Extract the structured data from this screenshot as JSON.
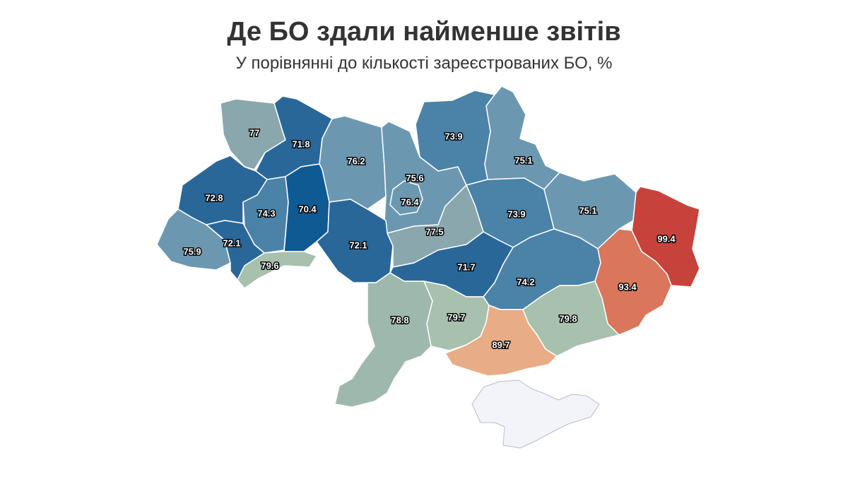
{
  "title": "Де БО здали найменше звітів",
  "subtitle": "У порівнянні до кількості зареєстрованих БО, %",
  "colors": {
    "dark_blue": "#0f5a93",
    "blue": "#2a6799",
    "mid_blue": "#4a82a8",
    "steel": "#6b98b0",
    "grey_teal": "#8aa7ae",
    "sage": "#9fb8ad",
    "light_sage": "#a8c0ae",
    "peach": "#e8ad86",
    "salmon": "#d9765c",
    "red": "#c7423a",
    "crimea": "#f3f4f9",
    "border": "#ffffff"
  },
  "regions": [
    {
      "id": "volyn",
      "value": "77"
    },
    {
      "id": "rivne",
      "value": "71.8"
    },
    {
      "id": "zhytomyr",
      "value": "76.2"
    },
    {
      "id": "kyiv-oblast",
      "value": "75.6"
    },
    {
      "id": "chernihiv",
      "value": "73.9"
    },
    {
      "id": "sumy",
      "value": "75.1"
    },
    {
      "id": "lviv",
      "value": "72.8"
    },
    {
      "id": "ternopil",
      "value": "74.3"
    },
    {
      "id": "khmelnytskyi",
      "value": "70.4"
    },
    {
      "id": "kyiv-city",
      "value": "76.4"
    },
    {
      "id": "cherkasy",
      "value": "77.5"
    },
    {
      "id": "poltava",
      "value": "73.9"
    },
    {
      "id": "kharkiv",
      "value": "75.1"
    },
    {
      "id": "luhansk",
      "value": "99.4"
    },
    {
      "id": "zakarpattia",
      "value": "75.9"
    },
    {
      "id": "ivano-frankivsk",
      "value": "72.1"
    },
    {
      "id": "vinnytsia",
      "value": "72.1"
    },
    {
      "id": "chernivtsi",
      "value": "79.6"
    },
    {
      "id": "kirovohrad",
      "value": "71.7"
    },
    {
      "id": "dnipropetrovsk",
      "value": "74.2"
    },
    {
      "id": "donetsk",
      "value": "93.4"
    },
    {
      "id": "odesa",
      "value": "78.8"
    },
    {
      "id": "mykolaiv",
      "value": "79.7"
    },
    {
      "id": "zaporizhzhia",
      "value": "79.8"
    },
    {
      "id": "kherson",
      "value": "89.7"
    },
    {
      "id": "crimea",
      "value": ""
    }
  ]
}
